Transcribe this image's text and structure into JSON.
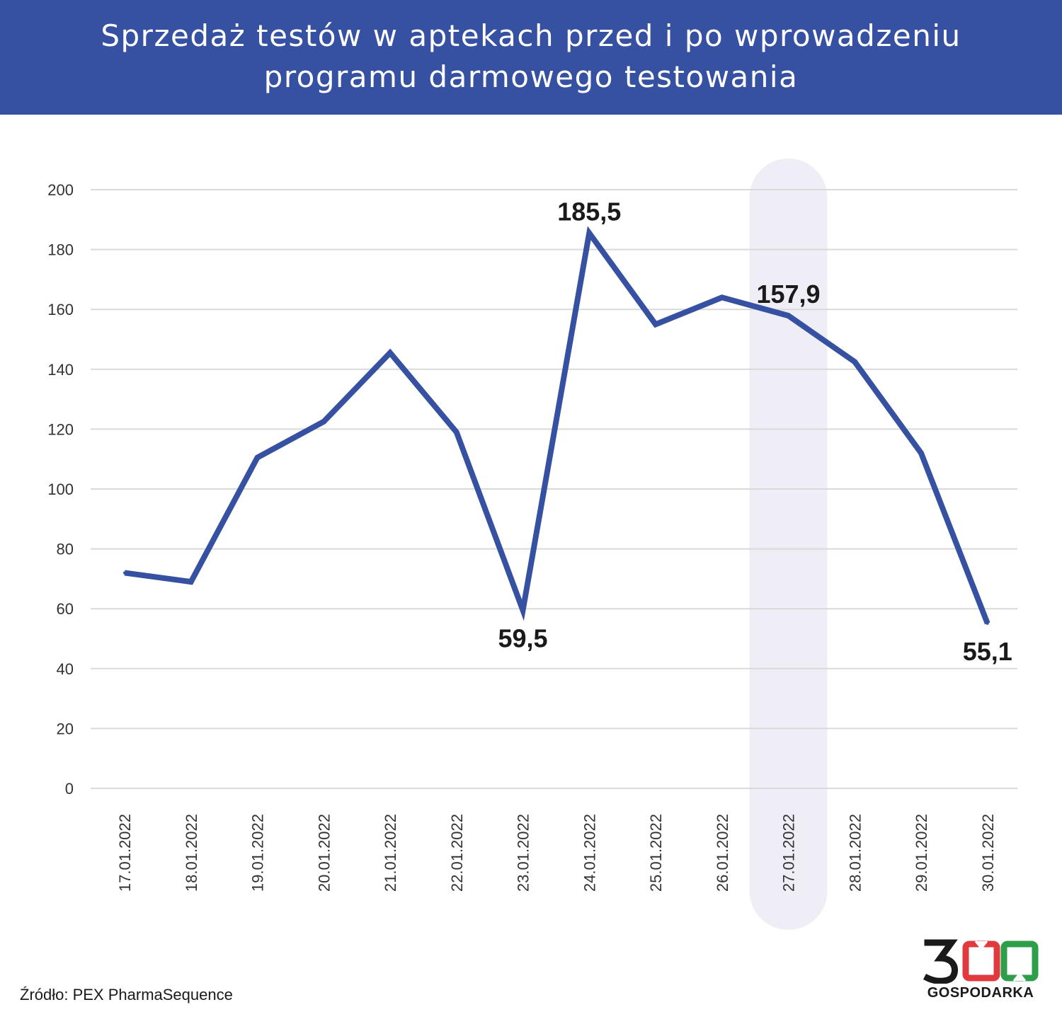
{
  "title": {
    "line1": "Sprzedaż testów w aptekach przed i po wprowadzeniu",
    "line2": "programu darmowego testowania"
  },
  "source": "Źródło: PEX PharmaSequence",
  "logo": {
    "number": "300",
    "text": "GOSPODARKA"
  },
  "colors": {
    "header": "#3651a1",
    "line": "#3651a1",
    "highlight": "#efeef7",
    "grid": "#d9d9d9",
    "logo_red": "#e03a3e",
    "logo_green": "#2e9e4a",
    "logo_dark": "#1a1a1a"
  },
  "chart_data": {
    "type": "line",
    "categories": [
      "17.01.2022",
      "18.01.2022",
      "19.01.2022",
      "20.01.2022",
      "21.01.2022",
      "22.01.2022",
      "23.01.2022",
      "24.01.2022",
      "25.01.2022",
      "26.01.2022",
      "27.01.2022",
      "28.01.2022",
      "29.01.2022",
      "30.01.2022"
    ],
    "series": [
      {
        "values": [
          72,
          69,
          110.5,
          122.5,
          145.5,
          119,
          59.5,
          185.5,
          155,
          164,
          157.9,
          142.5,
          112,
          55.1
        ]
      }
    ],
    "ylim": [
      0,
      200
    ],
    "yticks": [
      "0",
      "20",
      "40",
      "60",
      "80",
      "100",
      "120",
      "140",
      "160",
      "180",
      "200"
    ],
    "grid": true,
    "highlight_category": "27.01.2022",
    "data_labels": [
      {
        "index": 6,
        "text": "59,5",
        "position": "below"
      },
      {
        "index": 7,
        "text": "185,5",
        "position": "above"
      },
      {
        "index": 10,
        "text": "157,9",
        "position": "above"
      },
      {
        "index": 13,
        "text": "55,1",
        "position": "below"
      }
    ]
  }
}
